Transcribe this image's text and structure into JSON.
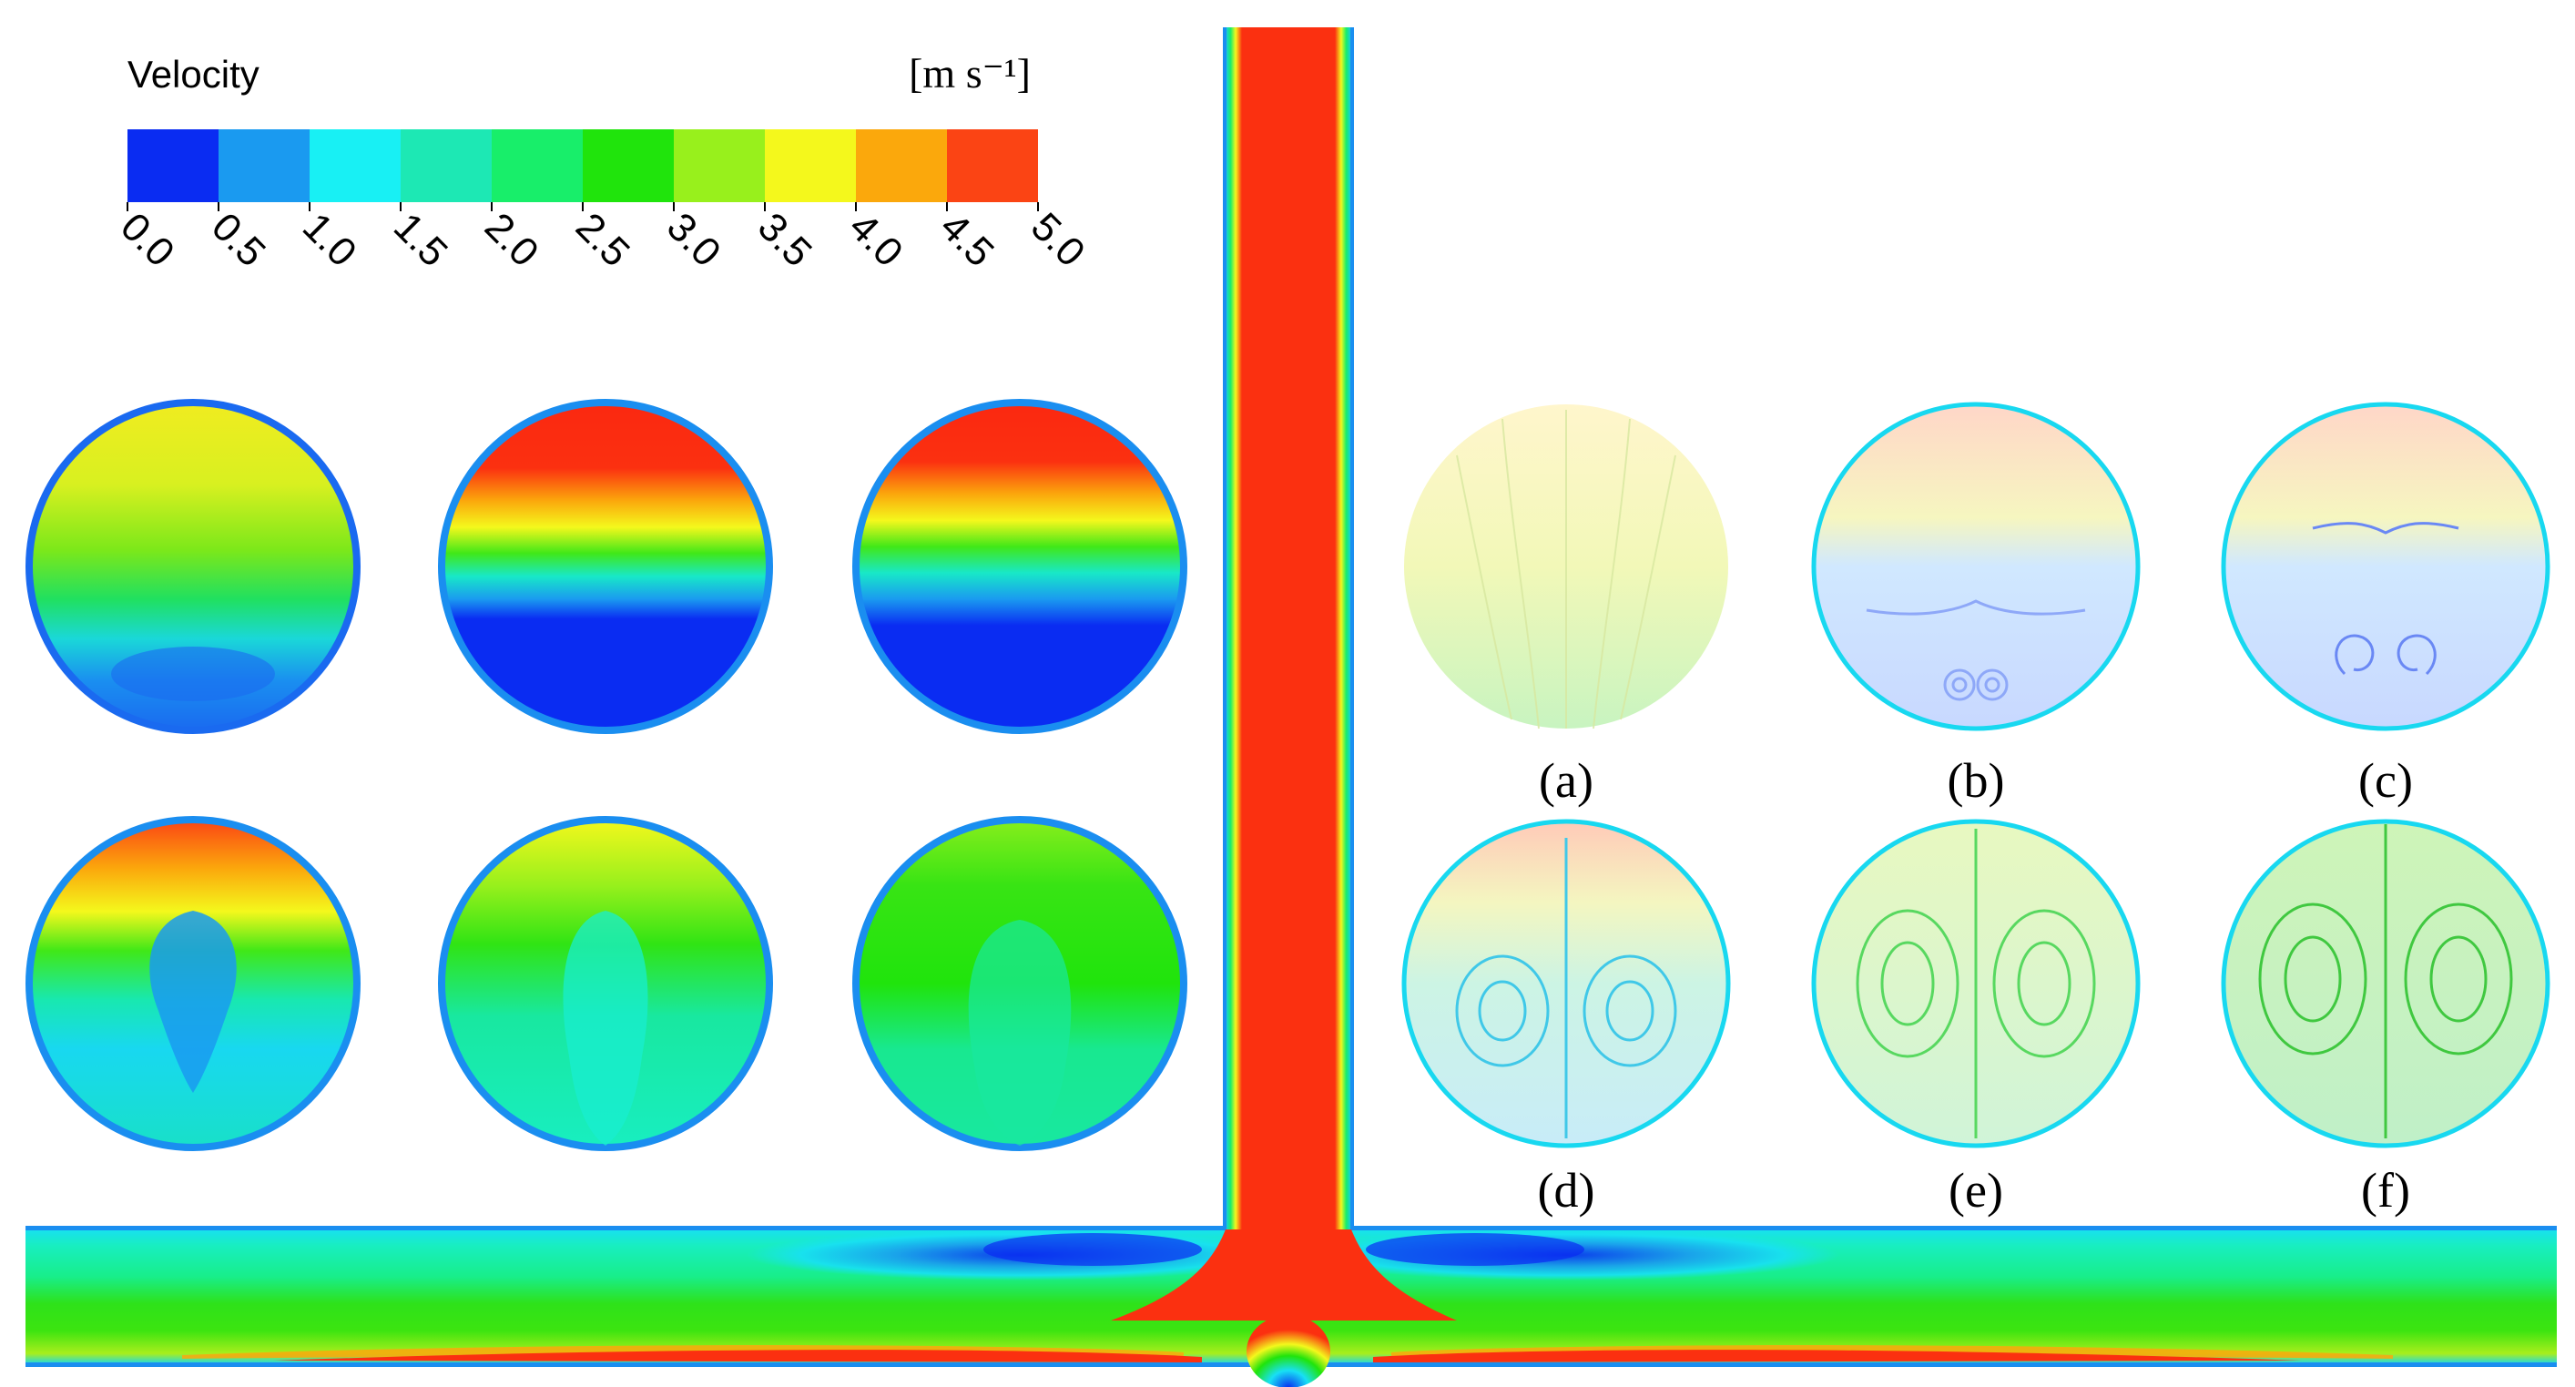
{
  "colorbar": {
    "title": "Velocity",
    "unit": "[m s⁻¹]",
    "ticks": [
      "0.0",
      "0.5",
      "1.0",
      "1.5",
      "2.0",
      "2.5",
      "3.0",
      "3.5",
      "4.0",
      "4.5",
      "5.0"
    ],
    "colors": [
      "#0a2cf2",
      "#1a9af0",
      "#18f0f4",
      "#1de8b4",
      "#18ee6a",
      "#20e40c",
      "#98f01c",
      "#f4f81c",
      "#fba80c",
      "#fb4414"
    ]
  },
  "panels": [
    {
      "label": "(a)"
    },
    {
      "label": "(b)"
    },
    {
      "label": "(c)"
    },
    {
      "label": "(d)"
    },
    {
      "label": "(e)"
    },
    {
      "label": "(f)"
    }
  ]
}
